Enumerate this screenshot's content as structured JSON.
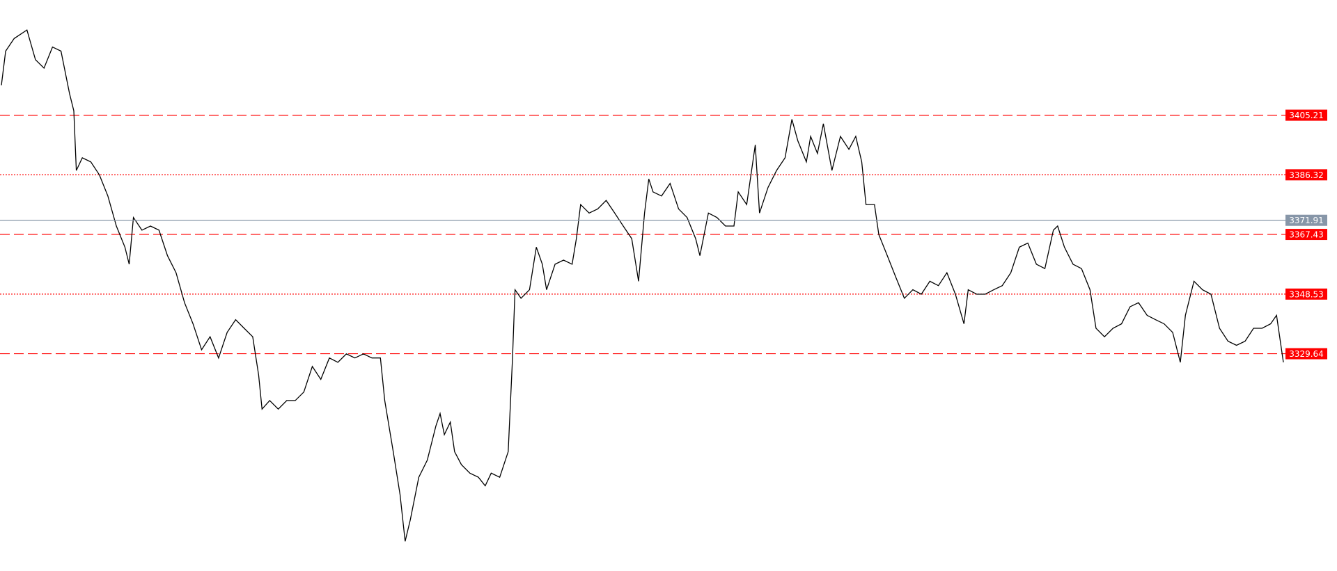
{
  "chart_data": {
    "type": "line",
    "x": [
      0,
      5,
      15,
      30,
      40,
      50,
      60,
      70,
      80,
      85,
      88,
      95,
      105,
      115,
      125,
      135,
      145,
      150,
      155,
      165,
      175,
      185,
      195,
      205,
      215,
      225,
      235,
      245,
      255,
      265,
      275,
      285,
      295,
      302,
      306,
      315,
      325,
      335,
      345,
      355,
      365,
      375,
      385,
      395,
      405,
      415,
      425,
      435,
      445,
      450,
      455,
      460,
      468,
      474,
      480,
      490,
      500,
      510,
      515,
      520,
      527,
      532,
      540,
      550,
      560,
      568,
      575,
      585,
      595,
      600,
      603,
      610,
      620,
      628,
      635,
      640,
      650,
      660,
      670,
      675,
      680,
      690,
      700,
      710,
      720,
      730,
      740,
      748,
      755,
      760,
      765,
      775,
      785,
      795,
      805,
      815,
      820,
      830,
      840,
      850,
      860,
      865,
      875,
      885,
      890,
      900,
      910,
      920,
      928,
      935,
      945,
      950,
      958,
      965,
      975,
      985,
      995,
      1003,
      1010,
      1015,
      1025,
      1030,
      1040,
      1050,
      1060,
      1070,
      1080,
      1090,
      1100,
      1110,
      1120,
      1130,
      1135,
      1145,
      1155,
      1165,
      1175,
      1185,
      1195,
      1205,
      1215,
      1225,
      1235,
      1240,
      1248,
      1258,
      1268,
      1278,
      1285,
      1295,
      1305,
      1315,
      1325,
      1335,
      1345,
      1355,
      1365,
      1375,
      1384,
      1390,
      1400,
      1410,
      1420,
      1430,
      1440,
      1450,
      1460,
      1470,
      1480,
      1490,
      1497,
      1505
    ],
    "series": [
      {
        "color": "#000000",
        "values": [
          3414.7,
          3425.5,
          3429.5,
          3432.2,
          3422.8,
          3420.1,
          3426.8,
          3425.5,
          3412.0,
          3406.6,
          3387.7,
          3391.7,
          3390.4,
          3386.3,
          3379.6,
          3370.1,
          3363.4,
          3358.0,
          3372.8,
          3368.8,
          3370.1,
          3368.8,
          3360.7,
          3355.3,
          3345.8,
          3339.1,
          3330.9,
          3335.0,
          3328.3,
          3336.4,
          3340.4,
          3337.7,
          3335.0,
          3322.9,
          3312.1,
          3314.8,
          3312.1,
          3314.8,
          3314.8,
          3317.5,
          3325.6,
          3321.5,
          3328.3,
          3326.9,
          3329.6,
          3328.3,
          3329.6,
          3328.3,
          3328.3,
          3314.8,
          3306.7,
          3298.6,
          3285.0,
          3270.2,
          3277.0,
          3290.5,
          3295.9,
          3306.7,
          3310.7,
          3304.0,
          3308.0,
          3298.6,
          3294.5,
          3291.8,
          3290.5,
          3287.8,
          3291.8,
          3290.5,
          3298.6,
          3328.3,
          3349.9,
          3347.2,
          3349.9,
          3363.4,
          3358.0,
          3349.9,
          3358.0,
          3359.3,
          3358.0,
          3366.1,
          3376.9,
          3374.2,
          3375.5,
          3378.2,
          3374.2,
          3370.1,
          3366.1,
          3352.6,
          3374.2,
          3385.0,
          3380.9,
          3379.6,
          3383.6,
          3375.5,
          3372.8,
          3366.1,
          3360.7,
          3374.2,
          3372.8,
          3370.1,
          3370.1,
          3380.9,
          3376.9,
          3395.8,
          3374.2,
          3382.3,
          3387.7,
          3391.7,
          3403.9,
          3397.1,
          3390.4,
          3398.5,
          3393.1,
          3402.5,
          3387.7,
          3398.5,
          3394.4,
          3398.5,
          3390.4,
          3376.9,
          3376.9,
          3367.4,
          3360.7,
          3353.9,
          3347.2,
          3349.9,
          3348.5,
          3352.6,
          3351.2,
          3355.3,
          3348.5,
          3339.1,
          3349.9,
          3348.5,
          3348.5,
          3349.9,
          3351.2,
          3355.3,
          3363.4,
          3364.7,
          3358.0,
          3356.6,
          3368.8,
          3370.1,
          3363.4,
          3358.0,
          3356.6,
          3349.9,
          3337.7,
          3335.0,
          3337.7,
          3339.1,
          3344.5,
          3345.8,
          3341.8,
          3340.4,
          3339.1,
          3336.4,
          3326.9,
          3341.8,
          3352.6,
          3349.9,
          3348.5,
          3337.7,
          3333.6,
          3332.3,
          3333.6,
          3337.7,
          3337.7,
          3339.1,
          3341.8,
          3326.9
        ]
      }
    ],
    "xlim": [
      0,
      1505
    ],
    "ylim": [
      3260.8,
      3441.7
    ],
    "levels": [
      {
        "value": 3405.21,
        "style": "dashed",
        "color": "#ff0000"
      },
      {
        "value": 3386.32,
        "style": "dotted",
        "color": "#ff0000"
      },
      {
        "value": 3367.43,
        "style": "dashed",
        "color": "#ff0000"
      },
      {
        "value": 3348.53,
        "style": "dotted",
        "color": "#ff0000"
      },
      {
        "value": 3329.64,
        "style": "dashed",
        "color": "#ff0000"
      }
    ],
    "current_price": {
      "value": 3371.91,
      "color": "#8796a8"
    }
  }
}
